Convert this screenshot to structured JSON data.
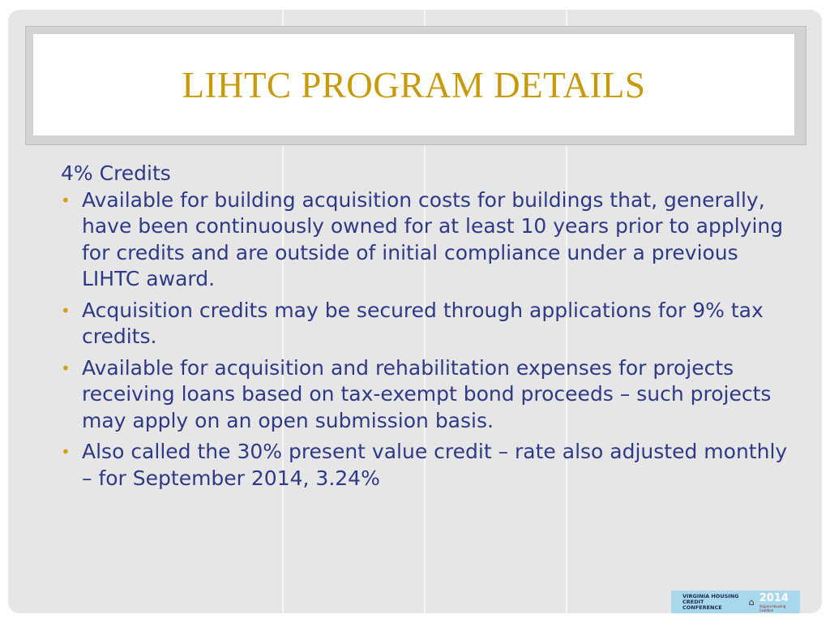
{
  "slide": {
    "title": "LIHTC PROGRAM DETAILS",
    "heading": "4% Credits",
    "bullets": [
      "Available for building acquisition costs for buildings that, generally, have been continuously owned for at least 10 years prior to applying for credits and are outside of initial compliance under a previous LIHTC award.",
      "Acquisition credits may be secured through applications for 9% tax credits.",
      "Available for acquisition and rehabilitation expenses for projects receiving loans based on tax-exempt bond proceeds – such projects may apply on an open submission basis.",
      "Also called the 30% present value credit – rate also adjusted monthly – for September 2014, 3.24%"
    ]
  },
  "logo": {
    "line1": "VIRGINIA HOUSING",
    "line2": "CREDIT CONFERENCE",
    "year": "2014",
    "org": "Virginia Housing Coalition",
    "icon": "house-icon"
  },
  "colors": {
    "title": "#c89a0a",
    "text": "#2e3a87",
    "bullet": "#d4a017"
  }
}
